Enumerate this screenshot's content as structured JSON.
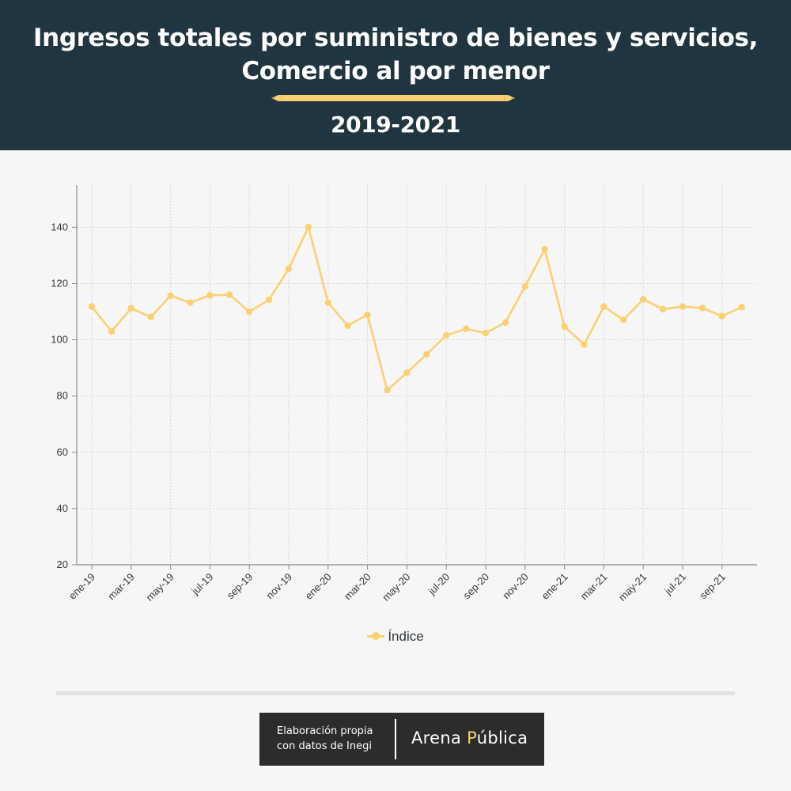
{
  "header": {
    "title_line1": "Ingresos totales por suministro de bienes y servicios,",
    "title_line2": "Comercio al por menor",
    "subtitle": "2019-2021"
  },
  "colors": {
    "header_bg": "#213540",
    "series": "#f9d173",
    "background": "#f6f6f6",
    "credit_bg": "#2c2c2c"
  },
  "chart_data": {
    "type": "line",
    "title": "Ingresos totales por suministro de bienes y servicios, Comercio al por menor",
    "subtitle": "2019-2021",
    "x": [
      "ene-19",
      "feb-19",
      "mar-19",
      "abr-19",
      "may-19",
      "jun-19",
      "jul-19",
      "ago-19",
      "sep-19",
      "oct-19",
      "nov-19",
      "dic-19",
      "ene-20",
      "feb-20",
      "mar-20",
      "abr-20",
      "may-20",
      "jun-20",
      "jul-20",
      "ago-20",
      "sep-20",
      "oct-20",
      "nov-20",
      "dic-20",
      "ene-21",
      "feb-21",
      "mar-21",
      "abr-21",
      "may-21",
      "jun-21",
      "jul-21",
      "ago-21",
      "sep-21",
      "oct-21"
    ],
    "tick_labels": [
      "ene-19",
      "mar-19",
      "may-19",
      "jul-19",
      "sep-19",
      "nov-19",
      "ene-20",
      "mar-20",
      "may-20",
      "jul-20",
      "sep-20",
      "nov-20",
      "ene-21",
      "mar-21",
      "may-21",
      "jul-21",
      "sep-21"
    ],
    "series": [
      {
        "name": "Índice",
        "color": "#f9d173",
        "values": [
          111.8,
          103.0,
          111.2,
          108.1,
          115.7,
          113.2,
          115.8,
          116.0,
          110.0,
          114.2,
          125.2,
          140.1,
          113.2,
          105.0,
          108.9,
          82.1,
          88.3,
          94.8,
          101.6,
          103.9,
          102.4,
          106.1,
          119.0,
          132.2,
          104.7,
          98.3,
          111.8,
          107.1,
          114.4,
          110.9,
          111.8,
          111.3,
          108.4,
          111.6
        ]
      }
    ],
    "xlabel": "",
    "ylabel": "",
    "ylim": [
      20,
      155
    ],
    "yticks": [
      20,
      40,
      60,
      80,
      100,
      120,
      140
    ],
    "grid": true,
    "legend": "bottom-center"
  },
  "credit": {
    "line1": "Elaboración propia",
    "line2": "con datos de Inegi",
    "brand_a": "Arena ",
    "brand_letter": "P",
    "brand_b": "ública"
  }
}
